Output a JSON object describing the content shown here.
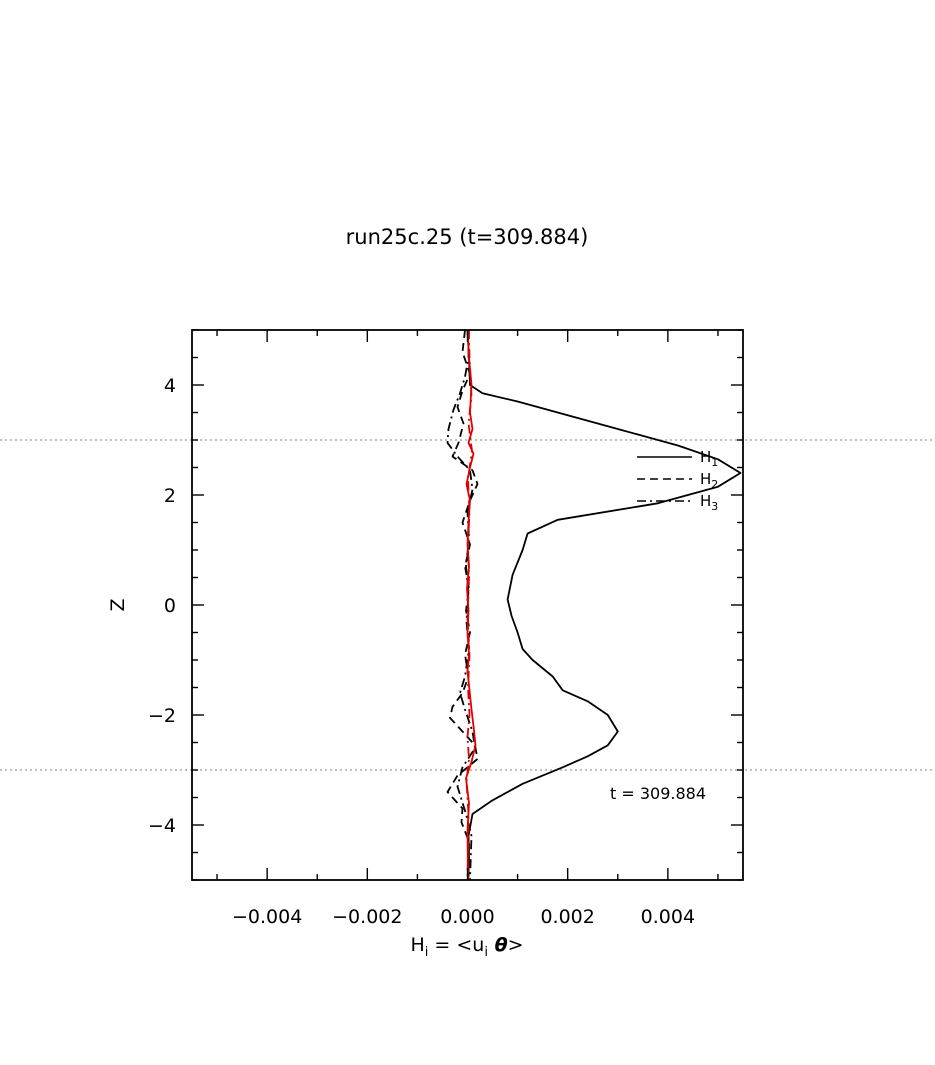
{
  "chart_data": {
    "type": "line",
    "title": "run25c.25 (t=309.884)",
    "xlabel": {
      "main": "H",
      "sub": "i",
      "eq": " = <u",
      "sub2": "i",
      "theta": " θ",
      "close": ">"
    },
    "ylabel": "Z",
    "xlim": [
      -0.0055,
      0.0055
    ],
    "ylim": [
      -5,
      5
    ],
    "xticks": [
      -0.004,
      -0.002,
      0.0,
      0.002,
      0.004
    ],
    "xtick_labels": [
      "−0.004",
      "−0.002",
      "0.000",
      "0.002",
      "0.004"
    ],
    "yticks": [
      -4,
      -2,
      0,
      2,
      4
    ],
    "ytick_labels": [
      "−4",
      "−2",
      "0",
      "2",
      "4"
    ],
    "hlines": [
      3,
      -3
    ],
    "annotation": "t = 309.884",
    "legend": {
      "placement": "right",
      "entries": [
        {
          "main": "H",
          "sub": "1",
          "style": "solid"
        },
        {
          "main": "H",
          "sub": "2",
          "style": "dashed"
        },
        {
          "main": "H",
          "sub": "3",
          "style": "dashdot"
        }
      ]
    },
    "series": [
      {
        "style": "solid",
        "color": "#000000",
        "points": [
          [
            0.0,
            5.0
          ],
          [
            3e-05,
            4.5
          ],
          [
            5e-05,
            4.0
          ],
          [
            0.0003,
            3.85
          ],
          [
            0.001,
            3.7
          ],
          [
            0.002,
            3.45
          ],
          [
            0.003,
            3.2
          ],
          [
            0.0042,
            2.9
          ],
          [
            0.005,
            2.65
          ],
          [
            0.00545,
            2.4
          ],
          [
            0.005,
            2.15
          ],
          [
            0.0038,
            1.85
          ],
          [
            0.0018,
            1.55
          ],
          [
            0.0012,
            1.3
          ],
          [
            0.0011,
            1.0
          ],
          [
            0.0009,
            0.55
          ],
          [
            0.0008,
            0.1
          ],
          [
            0.00088,
            -0.2
          ],
          [
            0.001,
            -0.5
          ],
          [
            0.0011,
            -0.8
          ],
          [
            0.0013,
            -1.0
          ],
          [
            0.0017,
            -1.3
          ],
          [
            0.0019,
            -1.55
          ],
          [
            0.0024,
            -1.75
          ],
          [
            0.0028,
            -2.0
          ],
          [
            0.003,
            -2.3
          ],
          [
            0.0028,
            -2.55
          ],
          [
            0.0024,
            -2.75
          ],
          [
            0.0019,
            -2.95
          ],
          [
            0.0011,
            -3.25
          ],
          [
            0.0005,
            -3.55
          ],
          [
            0.0001,
            -3.8
          ],
          [
            2e-05,
            -4.2
          ],
          [
            3e-05,
            -4.6
          ],
          [
            1e-05,
            -5.0
          ]
        ]
      },
      {
        "style": "dashed",
        "color": "#000000",
        "points": [
          [
            -5e-05,
            5.0
          ],
          [
            -0.0001,
            4.6
          ],
          [
            5e-05,
            4.2
          ],
          [
            -0.0001,
            3.9
          ],
          [
            -0.0002,
            3.6
          ],
          [
            -8e-05,
            3.3
          ],
          [
            -0.00018,
            2.95
          ],
          [
            -0.0003,
            2.7
          ],
          [
            0.0001,
            2.45
          ],
          [
            0.0002,
            2.2
          ],
          [
            5e-05,
            1.9
          ],
          [
            -0.0001,
            1.5
          ],
          [
            5e-05,
            1.1
          ],
          [
            -5e-05,
            0.7
          ],
          [
            3e-05,
            0.3
          ],
          [
            -3e-05,
            -0.1
          ],
          [
            5e-05,
            -0.5
          ],
          [
            -5e-05,
            -0.9
          ],
          [
            2e-05,
            -1.3
          ],
          [
            -0.0001,
            -1.6
          ],
          [
            -0.0003,
            -1.85
          ],
          [
            -0.00035,
            -2.05
          ],
          [
            -0.0001,
            -2.3
          ],
          [
            0.00015,
            -2.55
          ],
          [
            0.0002,
            -2.8
          ],
          [
            -0.0002,
            -3.1
          ],
          [
            -0.0004,
            -3.4
          ],
          [
            -0.0001,
            -3.7
          ],
          [
            -0.00012,
            -3.95
          ],
          [
            3e-05,
            -4.3
          ],
          [
            2e-05,
            -5.0
          ]
        ]
      },
      {
        "style": "dashdot",
        "color": "#000000",
        "points": [
          [
            3e-05,
            5.0
          ],
          [
            2e-05,
            4.5
          ],
          [
            -5e-05,
            4.15
          ],
          [
            -0.00015,
            3.85
          ],
          [
            -0.00028,
            3.55
          ],
          [
            -0.00038,
            3.2
          ],
          [
            -0.0004,
            2.95
          ],
          [
            -0.0002,
            2.7
          ],
          [
            5e-05,
            2.45
          ],
          [
            0.0001,
            2.1
          ],
          [
            0.0,
            1.7
          ],
          [
            3e-05,
            1.2
          ],
          [
            -3e-05,
            0.7
          ],
          [
            2e-05,
            0.2
          ],
          [
            -2e-05,
            -0.3
          ],
          [
            3e-05,
            -0.8
          ],
          [
            -5e-05,
            -1.3
          ],
          [
            -0.00015,
            -1.6
          ],
          [
            -5e-05,
            -1.9
          ],
          [
            0.0001,
            -2.3
          ],
          [
            0.00015,
            -2.6
          ],
          [
            -0.0001,
            -2.95
          ],
          [
            -0.0002,
            -3.3
          ],
          [
            -3e-05,
            -3.8
          ],
          [
            8e-05,
            -4.2
          ],
          [
            5e-05,
            -5.0
          ]
        ]
      },
      {
        "style": "solid",
        "color": "#e00000",
        "points": [
          [
            0.0,
            5.0
          ],
          [
            3e-05,
            4.5
          ],
          [
            8e-05,
            4.0
          ],
          [
            5e-05,
            3.5
          ],
          [
            0.0001,
            3.2
          ],
          [
            2e-05,
            2.95
          ],
          [
            0.00012,
            2.75
          ],
          [
            5e-05,
            2.5
          ],
          [
            -2e-05,
            2.2
          ],
          [
            5e-05,
            1.9
          ],
          [
            2e-05,
            1.5
          ],
          [
            0.0,
            1.1
          ],
          [
            3e-05,
            0.7
          ],
          [
            -1e-05,
            0.3
          ],
          [
            2e-05,
            -0.1
          ],
          [
            0.0,
            -0.5
          ],
          [
            3e-05,
            -0.9
          ],
          [
            0.0,
            -1.2
          ],
          [
            4e-05,
            -1.55
          ],
          [
            8e-05,
            -1.9
          ],
          [
            0.00012,
            -2.2
          ],
          [
            0.00016,
            -2.55
          ],
          [
            8e-05,
            -2.85
          ],
          [
            -3e-05,
            -3.15
          ],
          [
            3e-05,
            -3.6
          ],
          [
            0.0,
            -4.1
          ],
          [
            1e-05,
            -5.0
          ]
        ]
      },
      {
        "style": "dashdot",
        "color": "#e00000",
        "points": [
          [
            2e-05,
            5.0
          ],
          [
            5e-05,
            4.3
          ],
          [
            8e-05,
            3.8
          ],
          [
            2e-05,
            3.3
          ],
          [
            9e-05,
            2.8
          ],
          [
            1e-05,
            2.3
          ],
          [
            4e-05,
            1.7
          ],
          [
            1e-05,
            1.1
          ],
          [
            3e-05,
            0.5
          ],
          [
            0.0,
            -0.2
          ],
          [
            4e-05,
            -0.9
          ],
          [
            1e-05,
            -1.5
          ],
          [
            4e-05,
            -2.0
          ],
          [
            0.0,
            -2.4
          ],
          [
            3e-05,
            -2.8
          ],
          [
            -2e-05,
            -3.2
          ],
          [
            2e-05,
            -3.8
          ],
          [
            0.0,
            -5.0
          ]
        ]
      }
    ]
  }
}
